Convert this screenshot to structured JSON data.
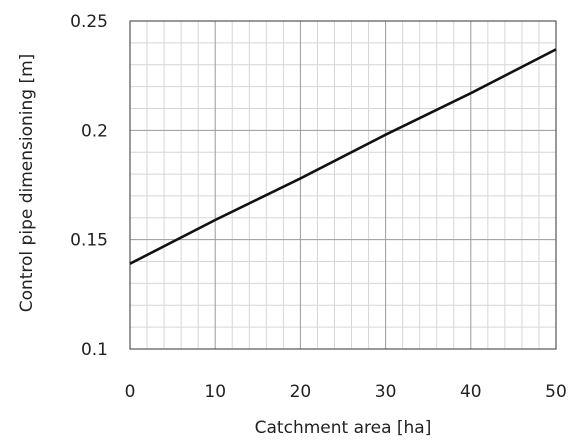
{
  "chart_data": {
    "type": "line",
    "xlabel": "Catchment area [ha]",
    "ylabel": "Control pipe dimensioning [m]",
    "xlim": [
      0,
      50
    ],
    "ylim": [
      0.1,
      0.25
    ],
    "xticks": [
      0,
      10,
      20,
      30,
      40,
      50
    ],
    "xtick_labels": [
      "0",
      "10",
      "20",
      "30",
      "40",
      "50"
    ],
    "yticks": [
      0.1,
      0.15,
      0.2,
      0.25
    ],
    "ytick_labels": [
      "0.1",
      "0.15",
      "0.2",
      "0.25"
    ],
    "grid": true,
    "minor_grid": true,
    "series": [
      {
        "x": [
          0,
          10,
          20,
          30,
          40,
          50
        ],
        "y": [
          0.139,
          0.159,
          0.178,
          0.198,
          0.217,
          0.237
        ],
        "color": "#111111"
      }
    ]
  }
}
